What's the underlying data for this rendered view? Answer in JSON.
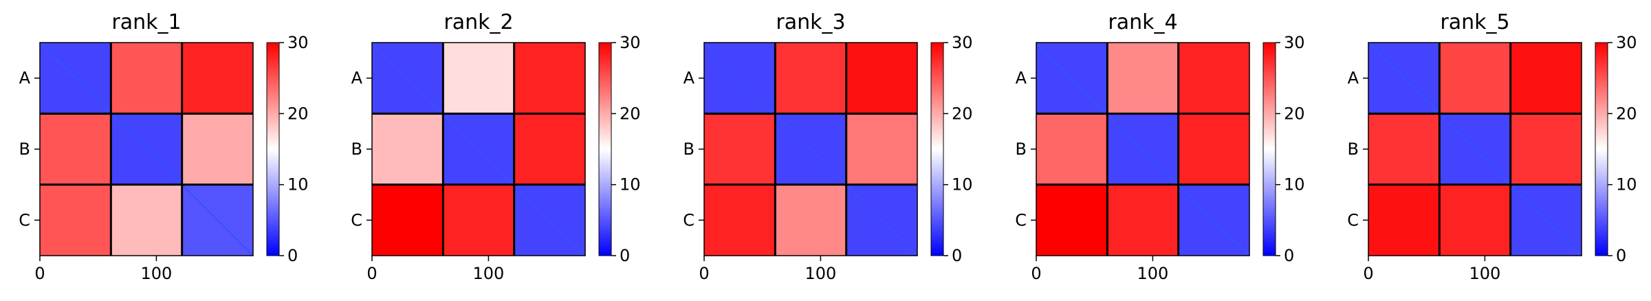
{
  "chart_data": [
    {
      "type": "heatmap",
      "title": "rank_1",
      "x_ticks": [
        0,
        100
      ],
      "y_ticks": [
        "A",
        "B",
        "C"
      ],
      "xlim": [
        0,
        183
      ],
      "block_boundaries": [
        61,
        122
      ],
      "colorbar": {
        "min": 0,
        "max": 30,
        "ticks": [
          0,
          10,
          20,
          30
        ],
        "colors": [
          "#0000ff",
          "#ffffff",
          "#ff0000"
        ]
      },
      "block_values": [
        [
          4,
          25,
          28
        ],
        [
          25,
          4,
          20
        ],
        [
          25,
          19,
          5
        ]
      ]
    },
    {
      "type": "heatmap",
      "title": "rank_2",
      "x_ticks": [
        0,
        100
      ],
      "y_ticks": [
        "A",
        "B",
        "C"
      ],
      "xlim": [
        0,
        183
      ],
      "block_boundaries": [
        61,
        122
      ],
      "colorbar": {
        "min": 0,
        "max": 30,
        "ticks": [
          0,
          10,
          20,
          30
        ],
        "colors": [
          "#0000ff",
          "#ffffff",
          "#ff0000"
        ]
      },
      "block_values": [
        [
          4,
          17,
          28
        ],
        [
          19,
          4,
          28
        ],
        [
          30,
          28,
          4
        ]
      ]
    },
    {
      "type": "heatmap",
      "title": "rank_3",
      "x_ticks": [
        0,
        100
      ],
      "y_ticks": [
        "A",
        "B",
        "C"
      ],
      "xlim": [
        0,
        183
      ],
      "block_boundaries": [
        61,
        122
      ],
      "colorbar": {
        "min": 0,
        "max": 30,
        "ticks": [
          0,
          10,
          20,
          30
        ],
        "colors": [
          "#0000ff",
          "#ffffff",
          "#ff0000"
        ]
      },
      "block_values": [
        [
          4,
          27,
          29
        ],
        [
          27,
          4,
          23
        ],
        [
          28,
          22,
          4
        ]
      ]
    },
    {
      "type": "heatmap",
      "title": "rank_4",
      "x_ticks": [
        0,
        100
      ],
      "y_ticks": [
        "A",
        "B",
        "C"
      ],
      "xlim": [
        0,
        183
      ],
      "block_boundaries": [
        61,
        122
      ],
      "colorbar": {
        "min": 0,
        "max": 30,
        "ticks": [
          0,
          10,
          20,
          30
        ],
        "colors": [
          "#0000ff",
          "#ffffff",
          "#ff0000"
        ]
      },
      "block_values": [
        [
          4,
          22,
          28
        ],
        [
          24,
          4,
          28
        ],
        [
          30,
          28,
          4
        ]
      ]
    },
    {
      "type": "heatmap",
      "title": "rank_5",
      "x_ticks": [
        0,
        100
      ],
      "y_ticks": [
        "A",
        "B",
        "C"
      ],
      "xlim": [
        0,
        183
      ],
      "block_boundaries": [
        61,
        122
      ],
      "colorbar": {
        "min": 0,
        "max": 30,
        "ticks": [
          0,
          10,
          20,
          30
        ],
        "colors": [
          "#0000ff",
          "#ffffff",
          "#ff0000"
        ]
      },
      "block_values": [
        [
          4,
          26,
          29
        ],
        [
          27,
          4,
          27
        ],
        [
          29,
          28,
          4
        ]
      ]
    }
  ]
}
